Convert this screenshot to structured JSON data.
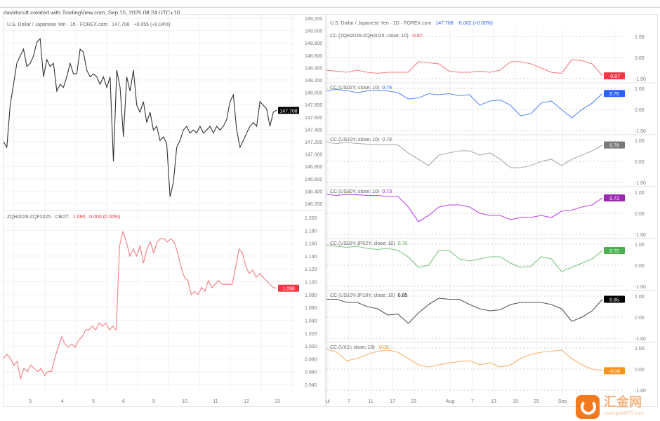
{
  "credit": "davidscutt created with TradingView.com, Sep 15, 2025 08:24 UTC+10",
  "watermark": {
    "name": "汇金网",
    "url": "www.gold678.com"
  },
  "chart_data": [
    {
      "type": "line",
      "id": "usdjpy-1h",
      "legend": {
        "title": "U.S. Dollar / Japanese Yen · 1h · FOREX.com",
        "value": "147.708",
        "change": "+0.055 (+0.04%)"
      },
      "color": "#333333",
      "ylim": [
        146.2,
        149.2
      ],
      "yticks": [
        "149.200",
        "149.000",
        "148.800",
        "148.600",
        "148.400",
        "148.200",
        "148.000",
        "147.800",
        "147.600",
        "147.400",
        "147.200",
        "147.000",
        "146.800",
        "146.600",
        "146.400",
        "146.200"
      ],
      "last_label": "147.708",
      "last_color": "#000000",
      "xticks": [
        "3",
        "4",
        "5",
        "6",
        "9",
        "10",
        "11",
        "12",
        "13"
      ],
      "values": [
        147.2,
        147.11,
        147.79,
        148.13,
        148.47,
        148.59,
        148.7,
        148.42,
        148.47,
        148.59,
        148.81,
        148.87,
        148.25,
        148.53,
        148.42,
        148.47,
        148.02,
        148.13,
        148.08,
        148.25,
        148.47,
        148.3,
        148.3,
        148.7,
        148.65,
        148.36,
        148.25,
        148.3,
        148.25,
        148.13,
        148.25,
        148.08,
        148.25,
        146.88,
        148.36,
        148.08,
        147.28,
        148.25,
        148.02,
        148.36,
        147.79,
        147.68,
        147.85,
        147.51,
        147.68,
        147.39,
        147.45,
        147.22,
        147.28,
        147.17,
        146.31,
        146.54,
        147.11,
        147.22,
        147.39,
        147.45,
        147.34,
        147.39,
        147.34,
        147.45,
        147.34,
        147.39,
        147.45,
        147.34,
        147.45,
        147.39,
        147.45,
        147.56,
        147.85,
        147.96,
        147.39,
        147.11,
        147.22,
        147.34,
        147.45,
        147.51,
        147.45,
        147.85,
        147.79,
        147.73,
        147.45,
        147.68,
        147.71
      ]
    },
    {
      "type": "line",
      "id": "zq-spread",
      "legend": {
        "title": "ZQH2026-ZQF2025 · CBOT",
        "value": "1.090",
        "change": "0.000 (0.00%)"
      },
      "color": "#f77c80",
      "ylim": [
        0.94,
        1.2
      ],
      "yticks": [
        "1.200",
        "1.180",
        "1.160",
        "1.140",
        "1.120",
        "1.100",
        "1.080",
        "1.060",
        "1.040",
        "1.020",
        "1.000",
        "0.980",
        "0.960",
        "0.940"
      ],
      "last_label": "1.090",
      "last_color": "#f23645",
      "values": [
        0.981,
        0.987,
        0.981,
        0.97,
        0.976,
        0.949,
        0.965,
        0.96,
        0.97,
        0.965,
        0.96,
        0.965,
        0.954,
        0.96,
        0.96,
        0.981,
        0.998,
        1.014,
        1.003,
        0.998,
        1.003,
        0.998,
        1.009,
        1.014,
        1.025,
        1.025,
        1.031,
        1.025,
        1.036,
        1.031,
        1.036,
        1.025,
        1.031,
        1.025,
        1.156,
        1.178,
        1.162,
        1.14,
        1.151,
        1.14,
        1.156,
        1.129,
        1.151,
        1.162,
        1.145,
        1.162,
        1.167,
        1.167,
        1.162,
        1.167,
        1.162,
        1.145,
        1.123,
        1.107,
        1.102,
        1.08,
        1.085,
        1.08,
        1.091,
        1.085,
        1.102,
        1.091,
        1.096,
        1.102,
        1.096,
        1.096,
        1.096,
        1.096,
        1.123,
        1.151,
        1.145,
        1.123,
        1.113,
        1.118,
        1.107,
        1.113,
        1.107,
        1.102,
        1.096,
        1.091,
        1.09
      ]
    },
    {
      "type": "line",
      "id": "correlations-1d",
      "header": {
        "title": "U.S. Dollar / Japanese Yen · 1D · FOREX.com",
        "value": "147.708",
        "change": "-0.002 (+0.00%)"
      },
      "xticks": [
        "ul",
        "7",
        "11",
        "17",
        "23",
        "Aug",
        "7",
        "13",
        "19",
        "25",
        "Sep",
        "13"
      ],
      "ylim": [
        -1,
        1
      ],
      "yticks": [
        "1.00",
        "0.00",
        "-1.00"
      ],
      "panes": [
        {
          "label": "CC (ZQH2026-ZQH2025; close; 10)",
          "value": "-0.87",
          "color": "#f77c80",
          "values": [
            -0.6,
            -0.65,
            -0.7,
            -0.6,
            -0.7,
            -0.75,
            -0.7,
            -0.7,
            -0.7,
            -0.2,
            -0.25,
            -0.3,
            -0.65,
            -0.7,
            -0.7,
            -0.65,
            -0.7,
            -0.6,
            -0.2,
            -0.2,
            -0.3,
            -0.5,
            -0.7,
            -0.75,
            -0.1,
            -0.15,
            -0.3,
            -0.87
          ]
        },
        {
          "label": "CC (US02Y; close; 10)",
          "value": "0.76",
          "color": "#5b8cff",
          "values": [
            0.9,
            0.95,
            0.9,
            0.8,
            0.88,
            0.9,
            0.88,
            0.8,
            0.5,
            0.55,
            0.75,
            0.7,
            0.75,
            0.65,
            0.7,
            0.2,
            0.4,
            0.45,
            0.2,
            -0.3,
            -0.2,
            0.3,
            0.4,
            0.0,
            -0.4,
            0.0,
            0.3,
            0.76
          ]
        },
        {
          "label": "CC (US10Y; close; 10)",
          "value": "0.78",
          "color": "#aaaaaa",
          "values": [
            0.9,
            0.85,
            0.9,
            0.85,
            0.82,
            0.8,
            0.8,
            0.78,
            0.4,
            0.1,
            -0.2,
            0.3,
            0.4,
            0.5,
            0.5,
            0.3,
            0.4,
            0.1,
            -0.3,
            -0.3,
            -0.2,
            0.0,
            0.1,
            -0.2,
            0.1,
            0.3,
            0.5,
            0.78
          ]
        },
        {
          "label": "CC (US30Y; close; 10)",
          "value": "0.73",
          "color": "#c040f5",
          "values": [
            0.9,
            0.85,
            0.9,
            0.88,
            0.85,
            0.85,
            0.8,
            0.8,
            0.3,
            -0.4,
            -0.1,
            0.3,
            0.4,
            0.4,
            0.3,
            0.0,
            -0.1,
            -0.1,
            -0.3,
            -0.2,
            -0.2,
            -0.1,
            -0.2,
            0.1,
            0.15,
            0.3,
            0.4,
            0.73
          ]
        },
        {
          "label": "CC (US02Y-JP02Y; close; 10)",
          "value": "0.70",
          "color": "#7bc47f",
          "values": [
            0.95,
            0.9,
            0.85,
            0.9,
            0.8,
            0.75,
            0.8,
            0.7,
            0.4,
            -0.1,
            0.0,
            0.7,
            0.7,
            0.3,
            0.2,
            0.3,
            0.4,
            0.4,
            0.1,
            -0.1,
            -0.05,
            0.4,
            0.3,
            -0.3,
            -0.1,
            0.1,
            0.3,
            0.7
          ]
        },
        {
          "label": "CC (US10Y-JP10Y; close; 10)",
          "value": "0.85",
          "color": "#555555",
          "values": [
            0.85,
            0.85,
            0.7,
            0.7,
            0.5,
            0.4,
            0.1,
            0.15,
            -0.3,
            0.2,
            0.6,
            0.9,
            0.85,
            0.85,
            0.6,
            0.4,
            0.3,
            0.35,
            0.6,
            0.7,
            0.7,
            0.7,
            0.6,
            0.4,
            -0.2,
            0.0,
            0.3,
            0.85
          ]
        },
        {
          "label": "CC (VX1!; close; 10)",
          "value": "-0.08",
          "color": "#f9b06a",
          "values": [
            0.95,
            0.8,
            0.4,
            0.5,
            0.7,
            0.85,
            0.9,
            0.8,
            0.5,
            0.2,
            0.1,
            0.2,
            0.3,
            0.35,
            0.4,
            0.2,
            0.3,
            0.1,
            0.2,
            0.5,
            0.7,
            0.8,
            0.85,
            0.9,
            0.5,
            0.2,
            0.0,
            -0.08
          ]
        }
      ]
    }
  ],
  "last_label_colors": [
    "#f23645",
    "#2962ff",
    "#787878",
    "#9c27b0",
    "#4caf50",
    "#000000",
    "#f7931a"
  ]
}
